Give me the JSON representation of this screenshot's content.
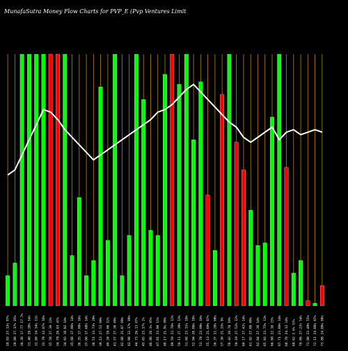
{
  "title": "MunafaSutra Money Flow Charts for PVP_E (Pvp Ventures Limit",
  "chart_data": {
    "type": "bar",
    "title": "MunafaSutra Money Flow Charts for PVP_E (Pvp Ventures Limit",
    "ylim": [
      0,
      100
    ],
    "grid": "vertical",
    "colors": {
      "up": "#00ff00",
      "down": "#ff0000",
      "line": "#ffffff",
      "grid": "#b8860b",
      "background": "#000000"
    },
    "categories": [
      "19.83 27.13% 07%",
      "29.80 27.17% 05%",
      "30.38 17.77 17.7%",
      "31.40 19.38% 14%",
      "32.60 14.14% 11%",
      "33.79 13.07% 16%",
      "35.58 27.30 23%",
      "34.79 28.03 47%",
      "34.93 18.92 10%",
      "35.68 17.06% 14%",
      "36.35 17.09% 16%",
      "37.00 17.68% 14%",
      "38.51 13.73% 29%",
      "39.13 27.53 09%",
      "40.34 19.06 12%",
      "41.57 27.36 09%",
      "42.88 21.87 09%",
      "43.90 12.17% 08%",
      "44.73 26.13 07%",
      "45.65 23.17% 2%",
      "46.86 28.1% 05%",
      "47.81 23.96 11%",
      "48.17 21.9% 09%",
      "49.50 22.76% 12%",
      "50.11 27.39% 13%",
      "51.68 23.15% 19%",
      "52.94 20.86% 19%",
      "53.79 23.09% 10%",
      "55.13 21.60% 07%",
      "56.37 22.20% 08%",
      "57.30 21.33% 9%",
      "58.42 20.70 10%",
      "59.19 27.52% 12%",
      "60.17 27.42% 14%",
      "61.92 27.89 09%",
      "62.64 27.36 14%",
      "65.93 23.75% 13%",
      "66.88 22.16 23%",
      "67.71 23.80% 14%",
      "68.78 24.13 24%",
      "69.62 2.6% 53%",
      "70.86 27.23% 54%",
      "71.90 23.49% 55%",
      "72.11 24.88% 07%",
      "73.88 24.88% 08%"
    ],
    "series": [
      {
        "values": [
          12,
          17,
          100,
          100,
          100,
          100,
          100,
          100,
          100,
          20,
          43,
          12,
          18,
          87,
          26,
          100,
          12,
          28,
          100,
          82,
          30,
          28,
          92,
          100,
          88,
          100,
          66,
          89,
          44,
          22,
          84,
          100,
          65,
          54,
          38,
          24,
          25,
          75,
          100,
          55,
          13,
          18,
          2,
          1,
          8
        ],
        "directions": [
          "up",
          "up",
          "up",
          "up",
          "up",
          "up",
          "down",
          "down",
          "up",
          "up",
          "up",
          "up",
          "up",
          "up",
          "up",
          "up",
          "up",
          "up",
          "up",
          "up",
          "up",
          "up",
          "up",
          "down",
          "up",
          "up",
          "up",
          "up",
          "down",
          "up",
          "down",
          "up",
          "down",
          "down",
          "up",
          "up",
          "up",
          "up",
          "up",
          "down",
          "up",
          "up",
          "down",
          "up",
          "down"
        ]
      },
      {
        "type": "line",
        "values": [
          52,
          54,
          60,
          66,
          72,
          78,
          77,
          74,
          70,
          67,
          64,
          61,
          58,
          60,
          62,
          64,
          66,
          68,
          70,
          72,
          74,
          77,
          78,
          80,
          83,
          86,
          88,
          85,
          82,
          79,
          76,
          73,
          71,
          67,
          65,
          67,
          69,
          71,
          66,
          69,
          70,
          68,
          69,
          70,
          69
        ]
      }
    ]
  }
}
